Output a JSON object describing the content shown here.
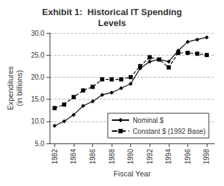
{
  "chart_data": {
    "type": "line",
    "title": "Exhibit 1:  Historical IT Spending\nLevels",
    "xlabel": "Fiscal Year",
    "ylabel": "Expenditures\n(in billions)",
    "x": [
      1982,
      1983,
      1984,
      1985,
      1986,
      1987,
      1988,
      1989,
      1990,
      1991,
      1992,
      1993,
      1994,
      1995,
      1996,
      1997,
      1998
    ],
    "series": [
      {
        "name": "Nominal $",
        "color": "#000000",
        "marker": "diamond",
        "line_style": "solid",
        "values": [
          9.0,
          10.0,
          11.5,
          13.5,
          14.5,
          16.0,
          16.5,
          17.5,
          18.5,
          22.0,
          23.5,
          24.0,
          23.5,
          26.0,
          28.0,
          28.5,
          29.0
        ]
      },
      {
        "name": "Constant $ (1992 Base)",
        "color": "#000000",
        "marker": "square",
        "line_style": "dashed",
        "values": [
          13.0,
          13.8,
          15.5,
          17.0,
          17.8,
          19.5,
          19.5,
          19.5,
          20.0,
          22.5,
          24.5,
          24.0,
          22.2,
          25.5,
          25.5,
          25.3,
          25.0
        ]
      }
    ],
    "xlim": [
      1981.5,
      1998.8
    ],
    "xticks": [
      1982,
      1984,
      1986,
      1988,
      1990,
      1992,
      1994,
      1996,
      1998
    ],
    "ylim": [
      5.0,
      30.0
    ],
    "yticks": [
      {
        "value": 5.0,
        "label": "5.0"
      },
      {
        "value": 10.0,
        "label": "10.0"
      },
      {
        "value": 15.0,
        "label": "15.0"
      },
      {
        "value": 20.0,
        "label": "20.0"
      },
      {
        "value": 25.0,
        "label": "25.0"
      },
      {
        "value": 30.0,
        "label": "30.0"
      }
    ],
    "grid": true,
    "legend": "lower right"
  }
}
